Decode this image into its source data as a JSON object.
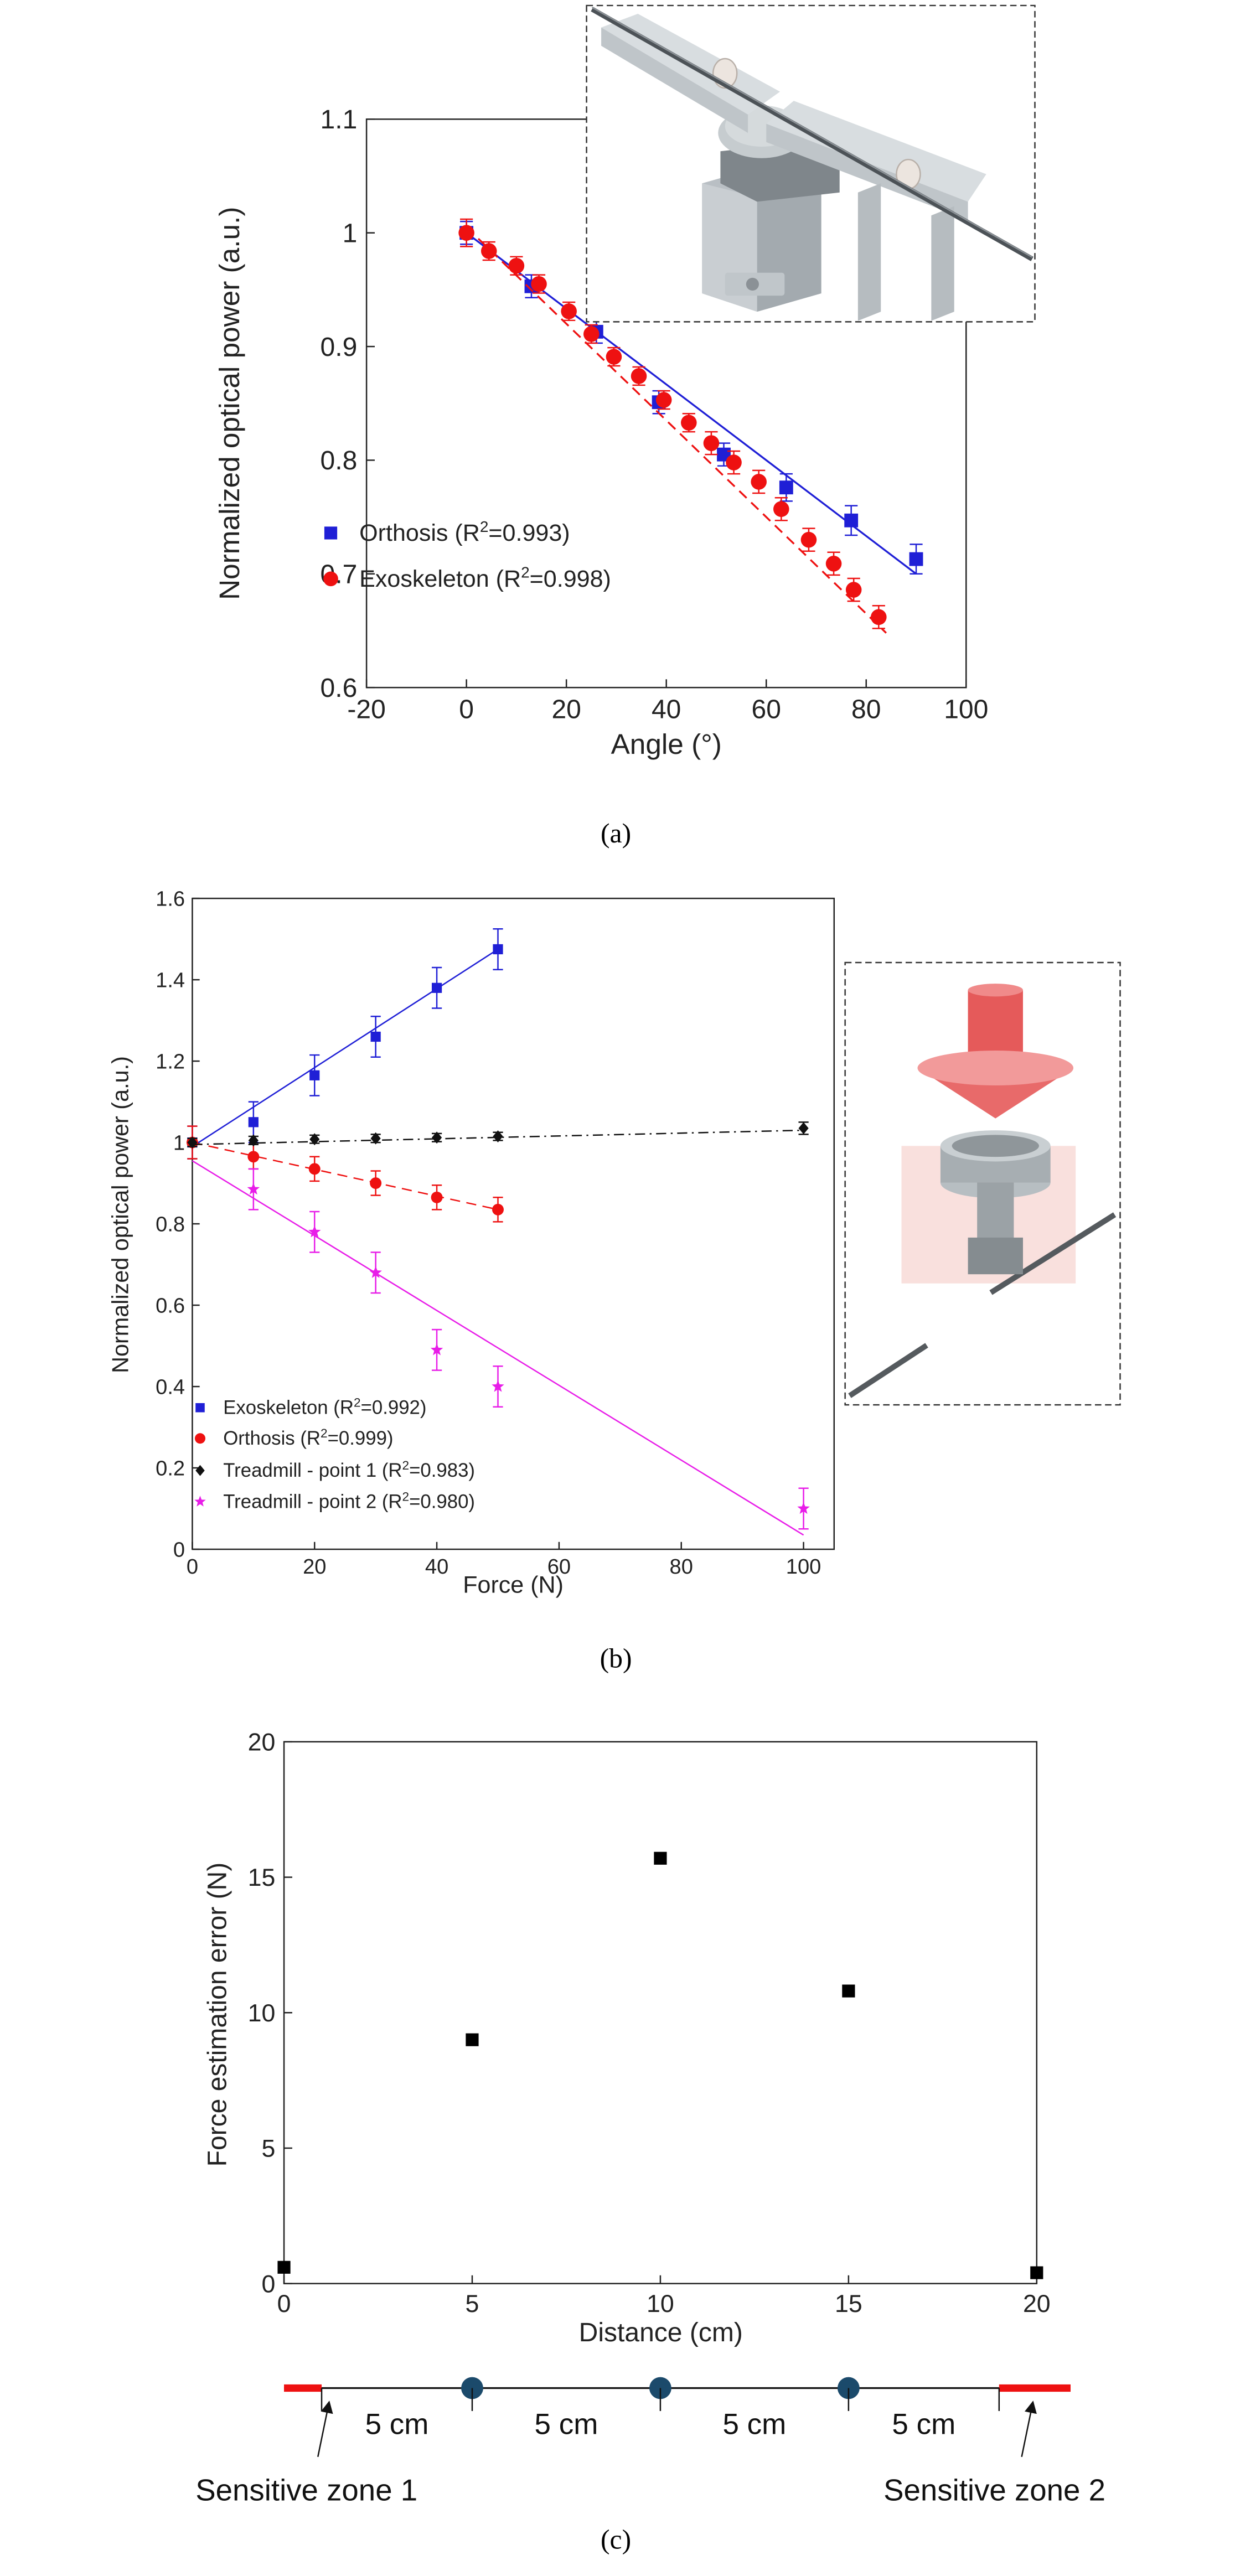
{
  "chart_data": [
    {
      "panel": "a",
      "type": "scatter",
      "caption": "(a)",
      "xlabel": "Angle (°)",
      "ylabel": "Normalized optical power (a.u.)",
      "xlim": [
        -20,
        100
      ],
      "ylim": [
        0.6,
        1.1
      ],
      "xticks": [
        "-20",
        "0",
        "20",
        "40",
        "60",
        "80",
        "100"
      ],
      "yticks": [
        "0.6",
        "0.7",
        "0.8",
        "0.9",
        "1",
        "1.1"
      ],
      "grid": false,
      "legend_position": "bottom-left",
      "colors": {
        "orthosis": "#1f1fd6",
        "exoskeleton": "#ee1111"
      },
      "series": [
        {
          "name": "Orthosis",
          "r2": "0.993",
          "legend_prefix": "Orthosis (R",
          "legend_suffix": "=0.993)",
          "marker": "square",
          "x": [
            0,
            13,
            26,
            38.5,
            51.5,
            64,
            77,
            90
          ],
          "y": [
            1.0,
            0.953,
            0.913,
            0.851,
            0.805,
            0.776,
            0.747,
            0.713
          ],
          "err": [
            0.01,
            0.01,
            0.01,
            0.01,
            0.01,
            0.012,
            0.013,
            0.013
          ],
          "fit": {
            "x": [
              0,
              90
            ],
            "y": [
              1.0,
              0.7
            ],
            "style": "solid"
          }
        },
        {
          "name": "Exoskeleton",
          "r2": "0.998",
          "legend_prefix": "Exoskeleton (R",
          "legend_suffix": "=0.998)",
          "marker": "circle",
          "x": [
            0,
            4.5,
            10,
            14.5,
            20.5,
            25,
            29.5,
            34.5,
            39.5,
            44.5,
            49,
            53.5,
            58.5,
            63,
            68.5,
            73.5,
            77.5,
            82.5
          ],
          "y": [
            1.0,
            0.984,
            0.971,
            0.955,
            0.931,
            0.911,
            0.891,
            0.874,
            0.853,
            0.833,
            0.815,
            0.798,
            0.781,
            0.757,
            0.73,
            0.709,
            0.686,
            0.662
          ],
          "err": [
            0.012,
            0.008,
            0.008,
            0.008,
            0.008,
            0.008,
            0.008,
            0.008,
            0.008,
            0.008,
            0.01,
            0.01,
            0.01,
            0.01,
            0.01,
            0.01,
            0.01,
            0.01
          ],
          "fit": {
            "x": [
              0,
              84
            ],
            "y": [
              1.005,
              0.648
            ],
            "style": "dashed"
          }
        }
      ]
    },
    {
      "panel": "b",
      "type": "scatter",
      "caption": "(b)",
      "xlabel": "Force (N)",
      "ylabel": "Normalized optical power (a.u.)",
      "xlim": [
        0,
        105
      ],
      "ylim": [
        0,
        1.6
      ],
      "xticks": [
        "0",
        "20",
        "40",
        "60",
        "80",
        "100"
      ],
      "yticks": [
        "0",
        "0.2",
        "0.4",
        "0.6",
        "0.8",
        "1",
        "1.2",
        "1.4",
        "1.6"
      ],
      "grid": false,
      "legend_position": "bottom-left",
      "series": [
        {
          "name": "Exoskeleton",
          "r2": "0.992",
          "legend_prefix": "Exoskeleton (R",
          "legend_suffix": "=0.992)",
          "color": "#1f1fd6",
          "marker": "square",
          "x": [
            0,
            10,
            20,
            30,
            40,
            50
          ],
          "y": [
            1.0,
            1.05,
            1.165,
            1.26,
            1.38,
            1.475
          ],
          "err": [
            0.04,
            0.05,
            0.05,
            0.05,
            0.05,
            0.05
          ],
          "fit": {
            "x": [
              0,
              50
            ],
            "y": [
              0.99,
              1.475
            ],
            "style": "solid"
          }
        },
        {
          "name": "Orthosis",
          "r2": "0.999",
          "legend_prefix": "Orthosis (R",
          "legend_suffix": "=0.999)",
          "color": "#ee1111",
          "marker": "circle",
          "x": [
            0,
            10,
            20,
            30,
            40,
            50
          ],
          "y": [
            1.0,
            0.965,
            0.935,
            0.9,
            0.865,
            0.835
          ],
          "err": [
            0.04,
            0.03,
            0.03,
            0.03,
            0.03,
            0.03
          ],
          "fit": {
            "x": [
              0,
              50
            ],
            "y": [
              1.0,
              0.835
            ],
            "style": "dashed"
          }
        },
        {
          "name": "Treadmill - point 1",
          "r2": "0.983",
          "legend_prefix": "Treadmill - point 1 (R",
          "legend_suffix": "=0.983)",
          "color": "#111111",
          "marker": "diamond",
          "x": [
            0,
            10,
            20,
            30,
            40,
            50,
            100
          ],
          "y": [
            1.0,
            1.005,
            1.008,
            1.01,
            1.012,
            1.015,
            1.035
          ],
          "err": [
            0.01,
            0.01,
            0.01,
            0.01,
            0.01,
            0.01,
            0.015
          ],
          "fit": {
            "x": [
              0,
              100
            ],
            "y": [
              0.995,
              1.03
            ],
            "style": "dashdot"
          }
        },
        {
          "name": "Treadmill - point 2",
          "r2": "0.980",
          "legend_prefix": "Treadmill - point 2 (R",
          "legend_suffix": "=0.980)",
          "color": "#e81de8",
          "marker": "star",
          "x": [
            10,
            20,
            30,
            40,
            50,
            100
          ],
          "y": [
            0.885,
            0.78,
            0.68,
            0.49,
            0.4,
            0.1
          ],
          "err": [
            0.05,
            0.05,
            0.05,
            0.05,
            0.05,
            0.05
          ],
          "fit": {
            "x": [
              0,
              100
            ],
            "y": [
              0.955,
              0.035
            ],
            "style": "solid"
          }
        }
      ]
    },
    {
      "panel": "c",
      "type": "scatter",
      "caption": "(c)",
      "xlabel": "Distance (cm)",
      "ylabel": "Force estimation error (N)",
      "xlim": [
        0,
        20
      ],
      "ylim": [
        0,
        20
      ],
      "xticks": [
        "0",
        "5",
        "10",
        "15",
        "20"
      ],
      "yticks": [
        "0",
        "5",
        "10",
        "15",
        "20"
      ],
      "grid": false,
      "series": [
        {
          "name": "error",
          "color": "#000000",
          "marker": "square",
          "x": [
            0,
            5,
            10,
            15,
            20
          ],
          "y": [
            0.6,
            9.0,
            15.7,
            10.8,
            0.4
          ]
        }
      ]
    }
  ],
  "diagram_c": {
    "segment_labels": [
      "5 cm",
      "5 cm",
      "5 cm",
      "5 cm"
    ],
    "zone1_label": "Sensitive zone 1",
    "zone2_label": "Sensitive zone 2",
    "colors": {
      "zone": "#ee1111",
      "dot": "#1b4a6b"
    }
  },
  "superscript_2": "2"
}
